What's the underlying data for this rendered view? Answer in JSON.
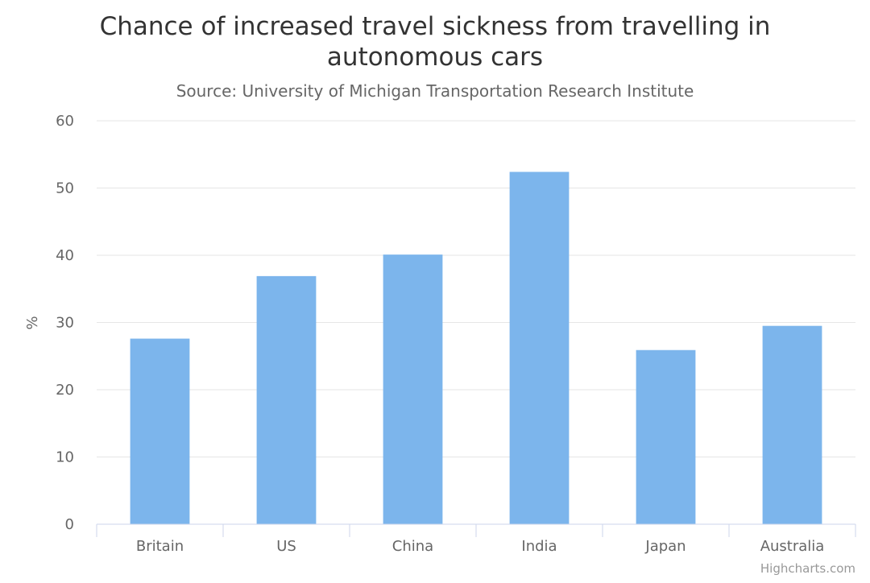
{
  "chart_data": {
    "type": "bar",
    "title_lines": [
      "Chance of increased travel sickness from travelling in",
      "autonomous cars"
    ],
    "subtitle": "Source: University of Michigan Transportation Research Institute",
    "xlabel": "",
    "ylabel": "%",
    "categories": [
      "Britain",
      "US",
      "China",
      "India",
      "Japan",
      "Australia"
    ],
    "values": [
      27.6,
      36.9,
      40.1,
      52.4,
      25.9,
      29.5
    ],
    "ylim": [
      0,
      60
    ],
    "yticks": [
      0,
      10,
      20,
      30,
      40,
      50,
      60
    ],
    "bar_color": "#7cb5ec",
    "grid": true,
    "legend": "none"
  },
  "credits": "Highcharts.com"
}
